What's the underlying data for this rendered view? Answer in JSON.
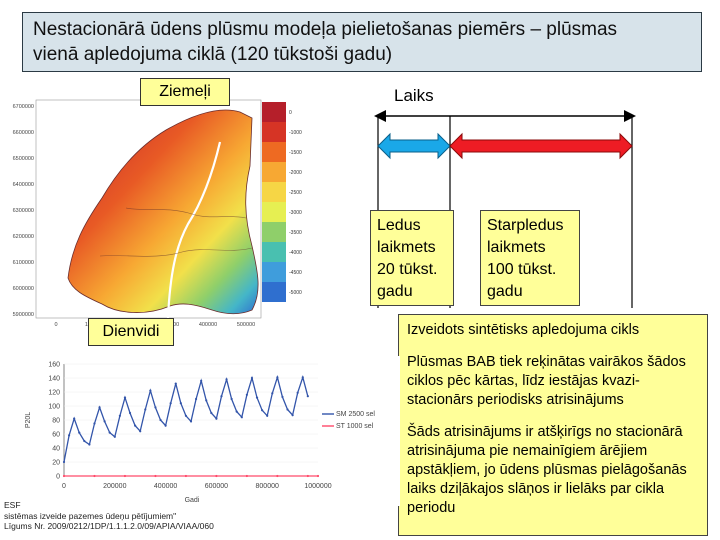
{
  "title": {
    "line1": "Nestacionārā ūdens plūsmu modeļa pielietošanas piemērs – plūsmas",
    "line2": "vienā apledojuma ciklā (120 tūkstoši gadu)"
  },
  "labels": {
    "north": "Ziemeļi",
    "south": "Dienvidi",
    "time": "Laiks"
  },
  "ice_age": {
    "l1": "Ledus",
    "l2": "laikmets",
    "l3": "20 tūkst.",
    "l4": "gadu"
  },
  "interglacial": {
    "l1": "Starpledus",
    "l2": "laikmets",
    "l3": "100 tūkst.",
    "l4": "gadu"
  },
  "notes": {
    "p1": "Izveidots sintētisks apledojuma cikls",
    "p2": "Plūsmas BAB tiek reķinātas vairākos šādos ciklos pēc kārtas, līdz iestājas kvazi-stacionārs periodisks atrisinājums",
    "p3": "Šāds atrisinājums ir atšķirīgs no stacionārā atrisinājuma pie nemainīgiem ārējiem apstākļiem, jo ūdens plūsmas pielāgošanās laiks dziļākajos slāņos ir lielāks par cikla periodu"
  },
  "map": {
    "y_ticks": [
      "6700000",
      "6600000",
      "6500000",
      "6400000",
      "6300000",
      "6200000",
      "6100000",
      "6000000",
      "5900000"
    ],
    "x_ticks": [
      "0",
      "100000",
      "200000",
      "300000",
      "400000",
      "500000"
    ],
    "colorbar_ticks": [
      "0",
      "-1000",
      "-1500",
      "-2000",
      "-2500",
      "-3000",
      "-3500",
      "-4000",
      "-4500",
      "-5000"
    ]
  },
  "footer": {
    "l1": "ESF",
    "l2": "sistēmas izveide pazemes ūdeņu pētījumiem\"",
    "l3": "Līgums Nr. 2009/0212/1DP/1.1.1.2.0/09/APIA/VIAA/060"
  },
  "chart_data": {
    "type": "line",
    "xlabel": "Gadi",
    "ylabel": "P20L",
    "xlim": [
      0,
      1000000
    ],
    "ylim": [
      0,
      160
    ],
    "x_ticks": [
      "0",
      "200000",
      "400000",
      "600000",
      "800000",
      "1000000"
    ],
    "y_ticks": [
      "0",
      "20",
      "40",
      "60",
      "80",
      "100",
      "120",
      "140",
      "160"
    ],
    "series": [
      {
        "name": "SM 2500 sel",
        "color": "#3355aa",
        "x": [
          0,
          20000,
          40000,
          60000,
          80000,
          100000,
          120000,
          140000,
          160000,
          180000,
          200000,
          220000,
          240000,
          260000,
          280000,
          300000,
          320000,
          340000,
          360000,
          380000,
          400000,
          420000,
          440000,
          460000,
          480000,
          500000,
          520000,
          540000,
          560000,
          580000,
          600000,
          620000,
          640000,
          660000,
          680000,
          700000,
          720000,
          740000,
          760000,
          780000,
          800000,
          820000,
          840000,
          860000,
          880000,
          900000,
          920000,
          940000,
          960000
        ],
        "values": [
          20,
          58,
          82,
          62,
          50,
          45,
          75,
          98,
          78,
          62,
          56,
          86,
          112,
          90,
          72,
          64,
          95,
          122,
          98,
          80,
          72,
          104,
          132,
          104,
          86,
          78,
          110,
          136,
          108,
          90,
          82,
          114,
          138,
          110,
          92,
          84,
          116,
          140,
          112,
          94,
          86,
          118,
          141,
          113,
          95,
          87,
          119,
          141,
          114
        ]
      },
      {
        "name": "ST 1000 sel",
        "color": "#ff4a6a",
        "x": [
          0,
          120000,
          240000,
          360000,
          480000,
          600000,
          720000,
          840000,
          960000,
          1000000
        ],
        "values": [
          0,
          0,
          0,
          0,
          0,
          0,
          0,
          0,
          0,
          0
        ]
      }
    ]
  }
}
